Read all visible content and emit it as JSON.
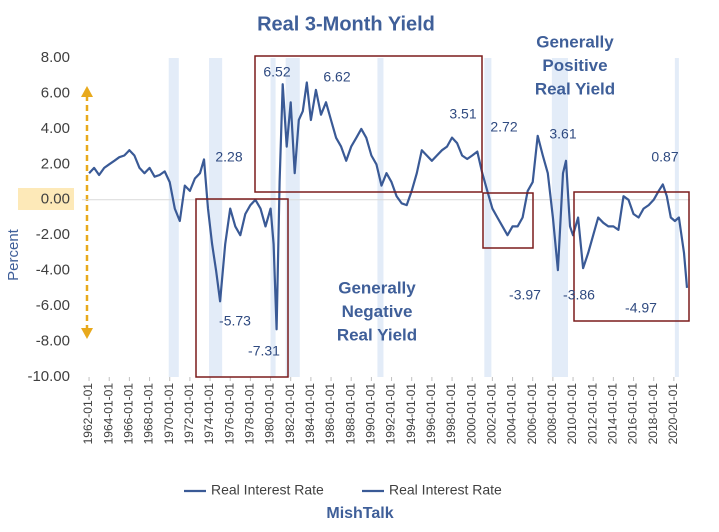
{
  "chart_data": {
    "type": "line",
    "title": "Real 3-Month Yield",
    "y_label": "Percent",
    "footer": "MishTalk",
    "legend": [
      "Real Interest Rate",
      "Real Interest Rate"
    ],
    "grid": false,
    "xlim": [
      1961.3,
      2021.6
    ],
    "xticks": [
      {
        "value": 1962,
        "label": "1962-01-01"
      },
      {
        "value": 1964,
        "label": "1964-01-01"
      },
      {
        "value": 1966,
        "label": "1966-01-01"
      },
      {
        "value": 1968,
        "label": "1968-01-01"
      },
      {
        "value": 1970,
        "label": "1970-01-01"
      },
      {
        "value": 1972,
        "label": "1972-01-01"
      },
      {
        "value": 1974,
        "label": "1974-01-01"
      },
      {
        "value": 1976,
        "label": "1976-01-01"
      },
      {
        "value": 1978,
        "label": "1978-01-01"
      },
      {
        "value": 1980,
        "label": "1980-01-01"
      },
      {
        "value": 1982,
        "label": "1982-01-01"
      },
      {
        "value": 1984,
        "label": "1984-01-01"
      },
      {
        "value": 1986,
        "label": "1986-01-01"
      },
      {
        "value": 1988,
        "label": "1988-01-01"
      },
      {
        "value": 1990,
        "label": "1990-01-01"
      },
      {
        "value": 1992,
        "label": "1992-01-01"
      },
      {
        "value": 1994,
        "label": "1994-01-01"
      },
      {
        "value": 1996,
        "label": "1996-01-01"
      },
      {
        "value": 1998,
        "label": "1998-01-01"
      },
      {
        "value": 2000,
        "label": "2000-01-01"
      },
      {
        "value": 2002,
        "label": "2002-01-01"
      },
      {
        "value": 2004,
        "label": "2004-01-01"
      },
      {
        "value": 2006,
        "label": "2006-01-01"
      },
      {
        "value": 2008,
        "label": "2008-01-01"
      },
      {
        "value": 2010,
        "label": "2010-01-01"
      },
      {
        "value": 2012,
        "label": "2012-01-01"
      },
      {
        "value": 2014,
        "label": "2014-01-01"
      },
      {
        "value": 2016,
        "label": "2016-01-01"
      },
      {
        "value": 2018,
        "label": "2018-01-01"
      },
      {
        "value": 2020,
        "label": "2020-01-01"
      }
    ],
    "ylim": [
      -10,
      8
    ],
    "yticks": [
      {
        "value": 8,
        "label": "8.00"
      },
      {
        "value": 6,
        "label": "6.00"
      },
      {
        "value": 4,
        "label": "4.00"
      },
      {
        "value": 2,
        "label": "2.00"
      },
      {
        "value": 0,
        "label": "0.00"
      },
      {
        "value": -2,
        "label": "-2.00"
      },
      {
        "value": -4,
        "label": "-4.00"
      },
      {
        "value": -6,
        "label": "-6.00"
      },
      {
        "value": -8,
        "label": "-8.00"
      },
      {
        "value": -10,
        "label": "-10.00"
      }
    ],
    "recessions": [
      [
        1969.9,
        1970.9
      ],
      [
        1973.9,
        1975.2
      ],
      [
        1980.0,
        1980.5
      ],
      [
        1981.5,
        1982.9
      ],
      [
        1990.6,
        1991.2
      ],
      [
        2001.2,
        2001.9
      ],
      [
        2007.9,
        2009.5
      ],
      [
        2020.1,
        2020.5
      ]
    ],
    "recession_color": "#e3ecf8",
    "series": [
      {
        "name": "Real Interest Rate",
        "color": "#3a5a96",
        "x": [
          1962,
          1962.5,
          1963,
          1963.5,
          1964,
          1964.5,
          1965,
          1965.5,
          1966,
          1966.5,
          1967,
          1967.5,
          1968,
          1968.5,
          1969,
          1969.5,
          1970,
          1970.5,
          1971,
          1971.5,
          1972,
          1972.5,
          1973,
          1973.4,
          1973.8,
          1974.2,
          1974.6,
          1975,
          1975.5,
          1976,
          1976.5,
          1977,
          1977.5,
          1978,
          1978.5,
          1979,
          1979.5,
          1980,
          1980.3,
          1980.6,
          1980.9,
          1981.2,
          1981.6,
          1982,
          1982.4,
          1982.8,
          1983.2,
          1983.6,
          1984,
          1984.5,
          1985,
          1985.5,
          1986,
          1986.5,
          1987,
          1987.5,
          1988,
          1988.5,
          1989,
          1989.5,
          1990,
          1990.5,
          1991,
          1991.5,
          1992,
          1992.5,
          1993,
          1993.5,
          1994,
          1994.5,
          1995,
          1995.5,
          1996,
          1996.5,
          1997,
          1997.5,
          1998,
          1998.5,
          1999,
          1999.5,
          2000,
          2000.5,
          2001,
          2001.5,
          2002,
          2002.5,
          2003,
          2003.5,
          2004,
          2004.5,
          2005,
          2005.5,
          2006,
          2006.5,
          2007,
          2007.5,
          2008,
          2008.5,
          2009,
          2009.3,
          2009.7,
          2010,
          2010.5,
          2011,
          2011.5,
          2012,
          2012.5,
          2013,
          2013.5,
          2014,
          2014.5,
          2015,
          2015.5,
          2016,
          2016.5,
          2017,
          2017.5,
          2018,
          2018.5,
          2018.9,
          2019.3,
          2019.7,
          2020.1,
          2020.5,
          2021,
          2021.3
        ],
        "values": [
          1.5,
          1.8,
          1.4,
          1.8,
          2.0,
          2.2,
          2.4,
          2.5,
          2.8,
          2.5,
          1.8,
          1.5,
          1.8,
          1.3,
          1.4,
          1.6,
          1.0,
          -0.5,
          -1.2,
          0.8,
          0.5,
          1.2,
          1.5,
          2.28,
          -0.5,
          -2.5,
          -4.0,
          -5.73,
          -2.5,
          -0.5,
          -1.5,
          -2.0,
          -0.8,
          -0.3,
          0,
          -0.5,
          -1.5,
          -0.5,
          -2.5,
          -7.31,
          1.0,
          6.52,
          3.0,
          5.5,
          1.5,
          4.5,
          5.0,
          6.62,
          4.5,
          6.2,
          4.8,
          5.5,
          4.5,
          3.5,
          3.0,
          2.2,
          3.0,
          3.5,
          4.0,
          3.5,
          2.5,
          2.0,
          0.8,
          1.5,
          1.0,
          0.2,
          -0.2,
          -0.3,
          0.5,
          1.5,
          2.8,
          2.5,
          2.2,
          2.5,
          2.8,
          3.0,
          3.51,
          3.2,
          2.5,
          2.3,
          2.5,
          2.72,
          1.5,
          0.5,
          -0.5,
          -1.0,
          -1.5,
          -2.0,
          -1.5,
          -1.5,
          -1.0,
          0.5,
          1.0,
          3.61,
          2.5,
          1.5,
          -1.0,
          -3.97,
          1.5,
          2.2,
          -1.5,
          -2.0,
          -1.0,
          -3.86,
          -3.0,
          -2.0,
          -1.0,
          -1.3,
          -1.5,
          -1.5,
          -1.7,
          0.2,
          0.0,
          -0.8,
          -1.0,
          -0.5,
          -0.3,
          0.0,
          0.5,
          0.87,
          0.2,
          -1.0,
          -1.2,
          -1.0,
          -3.0,
          -4.97
        ]
      }
    ],
    "annotations": [
      "2.28",
      "-5.73",
      "-7.31",
      "6.52",
      "6.62",
      "3.51",
      "2.72",
      "3.61",
      "-3.97",
      "-3.86",
      "0.87",
      "-4.97"
    ],
    "notes": [
      [
        "Generally",
        "Negative",
        "Real Yield"
      ],
      [
        "Generally",
        "Positive",
        "Real Yield"
      ]
    ]
  }
}
